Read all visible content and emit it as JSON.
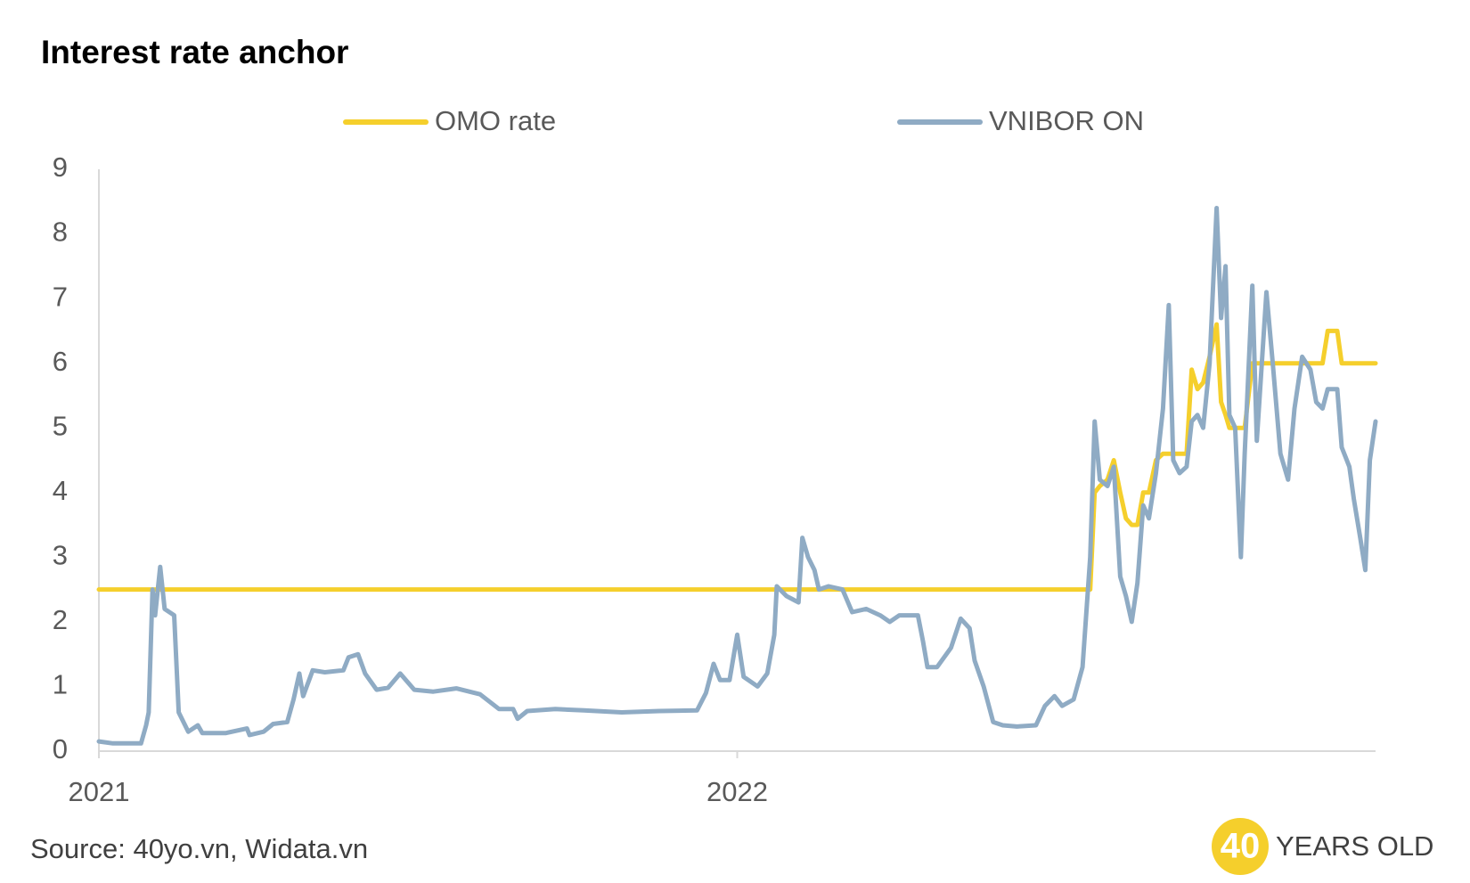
{
  "chart_data": {
    "type": "line",
    "title": "Interest rate anchor",
    "source": "Source: 40yo.vn, Widata.vn",
    "logo": {
      "number": "40",
      "text": "YEARS OLD"
    },
    "legend": "top",
    "grid": false,
    "xlim": [
      2021,
      2023
    ],
    "xticks": [
      2021,
      2022
    ],
    "ylim": [
      0,
      9
    ],
    "yticks": [
      0,
      1,
      2,
      3,
      4,
      5,
      6,
      7,
      8,
      9
    ],
    "x": [
      2021.0,
      2021.022,
      2021.066,
      2021.074,
      2021.078,
      2021.084,
      2021.088,
      2021.096,
      2021.103,
      2021.118,
      2021.125,
      2021.14,
      2021.155,
      2021.162,
      2021.199,
      2021.232,
      2021.236,
      2021.258,
      2021.273,
      2021.295,
      2021.305,
      2021.314,
      2021.32,
      2021.335,
      2021.354,
      2021.383,
      2021.391,
      2021.406,
      2021.417,
      2021.435,
      2021.453,
      2021.472,
      2021.494,
      2021.524,
      2021.56,
      2021.597,
      2021.627,
      2021.649,
      2021.656,
      2021.671,
      2021.715,
      2021.76,
      2021.819,
      2021.878,
      2021.937,
      2021.951,
      2021.963,
      2021.973,
      2021.988,
      2022.0,
      2022.01,
      2022.032,
      2022.047,
      2022.058,
      2022.062,
      2022.077,
      2022.096,
      2022.102,
      2022.111,
      2022.121,
      2022.128,
      2022.143,
      2022.165,
      2022.18,
      2022.202,
      2022.224,
      2022.239,
      2022.254,
      2022.283,
      2022.291,
      2022.298,
      2022.313,
      2022.335,
      2022.35,
      2022.364,
      2022.372,
      2022.386,
      2022.401,
      2022.416,
      2022.438,
      2022.468,
      2022.482,
      2022.497,
      2022.509,
      2022.527,
      2022.541,
      2022.553,
      2022.56,
      2022.568,
      2022.58,
      2022.59,
      2022.6,
      2022.609,
      2022.618,
      2022.627,
      2022.636,
      2022.645,
      2022.656,
      2022.667,
      2022.676,
      2022.683,
      2022.693,
      2022.704,
      2022.712,
      2022.721,
      2022.73,
      2022.74,
      2022.751,
      2022.758,
      2022.765,
      2022.771,
      2022.78,
      2022.789,
      2022.795,
      2022.807,
      2022.814,
      2022.829,
      2022.839,
      2022.851,
      2022.863,
      2022.873,
      2022.885,
      2022.898,
      2022.907,
      2022.917,
      2022.925,
      2022.94,
      2022.947,
      2022.959,
      2022.966,
      2022.976,
      2022.984,
      2022.991,
      2023.0
    ],
    "series": [
      {
        "name": "OMO rate",
        "color": "#f5cf2c",
        "values": [
          2.5,
          2.5,
          2.5,
          2.5,
          2.5,
          2.5,
          2.5,
          2.5,
          2.5,
          2.5,
          2.5,
          2.5,
          2.5,
          2.5,
          2.5,
          2.5,
          2.5,
          2.5,
          2.5,
          2.5,
          2.5,
          2.5,
          2.5,
          2.5,
          2.5,
          2.5,
          2.5,
          2.5,
          2.5,
          2.5,
          2.5,
          2.5,
          2.5,
          2.5,
          2.5,
          2.5,
          2.5,
          2.5,
          2.5,
          2.5,
          2.5,
          2.5,
          2.5,
          2.5,
          2.5,
          2.5,
          2.5,
          2.5,
          2.5,
          2.5,
          2.5,
          2.5,
          2.5,
          2.5,
          2.5,
          2.5,
          2.5,
          2.5,
          2.5,
          2.5,
          2.5,
          2.5,
          2.5,
          2.5,
          2.5,
          2.5,
          2.5,
          2.5,
          2.5,
          2.5,
          2.5,
          2.5,
          2.5,
          2.5,
          2.5,
          2.5,
          2.5,
          2.5,
          2.5,
          2.5,
          2.5,
          2.5,
          2.5,
          2.5,
          2.5,
          2.5,
          2.5,
          4.0,
          4.1,
          4.2,
          4.5,
          4.0,
          3.6,
          3.5,
          3.5,
          4.0,
          4.0,
          4.5,
          4.6,
          4.6,
          4.6,
          4.6,
          4.6,
          5.9,
          5.6,
          5.7,
          6.1,
          6.6,
          5.4,
          5.2,
          5.0,
          5.0,
          5.0,
          5.0,
          6.0,
          6.0,
          6.0,
          6.0,
          6.0,
          6.0,
          6.0,
          6.0,
          6.0,
          6.0,
          6.0,
          6.5,
          6.5,
          6.0,
          6.0,
          6.0,
          6.0,
          6.0,
          6.0,
          6.0
        ]
      },
      {
        "name": "VNIBOR ON",
        "color": "#8fabc4",
        "values": [
          0.15,
          0.12,
          0.12,
          0.4,
          0.6,
          2.5,
          2.1,
          2.85,
          2.2,
          2.1,
          0.6,
          0.3,
          0.4,
          0.28,
          0.28,
          0.35,
          0.25,
          0.3,
          0.42,
          0.45,
          0.8,
          1.2,
          0.85,
          1.25,
          1.22,
          1.25,
          1.45,
          1.5,
          1.2,
          0.95,
          0.98,
          1.2,
          0.95,
          0.92,
          0.97,
          0.88,
          0.65,
          0.65,
          0.5,
          0.62,
          0.65,
          0.63,
          0.6,
          0.62,
          0.63,
          0.9,
          1.35,
          1.1,
          1.1,
          1.8,
          1.15,
          1.0,
          1.2,
          1.8,
          2.55,
          2.4,
          2.3,
          3.3,
          3.0,
          2.8,
          2.5,
          2.55,
          2.5,
          2.15,
          2.2,
          2.1,
          2.0,
          2.1,
          2.1,
          1.7,
          1.3,
          1.3,
          1.6,
          2.05,
          1.9,
          1.4,
          1.0,
          0.45,
          0.4,
          0.38,
          0.4,
          0.7,
          0.85,
          0.7,
          0.8,
          1.3,
          3.0,
          5.1,
          4.2,
          4.1,
          4.4,
          2.7,
          2.4,
          2.0,
          2.6,
          3.8,
          3.6,
          4.3,
          5.3,
          6.9,
          4.5,
          4.3,
          4.4,
          5.1,
          5.2,
          5.0,
          6.0,
          8.4,
          6.7,
          7.5,
          5.2,
          5.0,
          3.0,
          4.6,
          7.2,
          4.8,
          7.1,
          6.0,
          4.6,
          4.2,
          5.3,
          6.1,
          5.9,
          5.4,
          5.3,
          5.6,
          5.6,
          4.7,
          4.4,
          3.9,
          3.3,
          2.8,
          4.5,
          5.1
        ]
      }
    ]
  }
}
